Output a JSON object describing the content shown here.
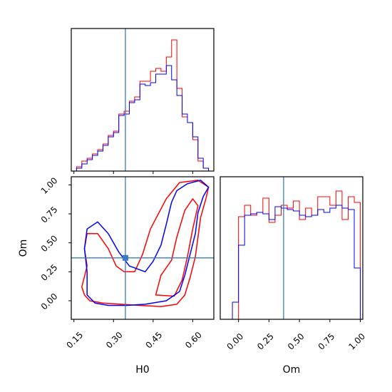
{
  "chart_data": {
    "type": "corner",
    "parameters": [
      "H0",
      "Om"
    ],
    "truth": {
      "H0": 0.345,
      "Om": 0.37
    },
    "truth_color": "#3b7bbf",
    "series": [
      {
        "color": "#ff0000"
      },
      {
        "color": "#0000ff"
      }
    ],
    "panels": {
      "h0_hist": {
        "xlim": [
          0.14,
          0.68
        ],
        "bins": [
          0.14,
          0.16,
          0.18,
          0.2,
          0.22,
          0.24,
          0.26,
          0.28,
          0.3,
          0.32,
          0.34,
          0.36,
          0.38,
          0.4,
          0.42,
          0.44,
          0.46,
          0.48,
          0.5,
          0.52,
          0.54,
          0.56,
          0.58,
          0.6,
          0.62,
          0.64,
          0.66,
          0.68
        ],
        "counts": [
          [
            0,
            0.03,
            0.07,
            0.09,
            0.12,
            0.15,
            0.19,
            0.25,
            0.28,
            0.4,
            0.42,
            0.49,
            0.52,
            0.63,
            0.63,
            0.7,
            0.72,
            0.7,
            0.8,
            0.92,
            0.58,
            0.38,
            0.34,
            0.22,
            0.07,
            0.02,
            0
          ],
          [
            0,
            0.02,
            0.05,
            0.08,
            0.11,
            0.14,
            0.18,
            0.24,
            0.27,
            0.39,
            0.4,
            0.48,
            0.5,
            0.61,
            0.6,
            0.62,
            0.68,
            0.68,
            0.74,
            0.64,
            0.53,
            0.4,
            0.34,
            0.24,
            0.09,
            0.02,
            0
          ]
        ]
      },
      "joint": {
        "xlim": [
          0.14,
          0.68
        ],
        "ylim": [
          -0.16,
          1.07
        ],
        "xticks": [
          0.15,
          0.3,
          0.45,
          0.6
        ],
        "xtick_labels": [
          "0.15",
          "0.30",
          "0.45",
          "0.60"
        ],
        "yticks": [
          0.0,
          0.25,
          0.5,
          0.75,
          1.0
        ],
        "ytick_labels": [
          "0.00",
          "0.25",
          "0.50",
          "0.75",
          "1.00"
        ],
        "xlabel": "H0",
        "ylabel": "Om",
        "contours": [
          {
            "series": 0,
            "points": [
              [
                0.18,
                0.12
              ],
              [
                0.19,
                0.05
              ],
              [
                0.21,
                0.0
              ],
              [
                0.26,
                -0.02
              ],
              [
                0.33,
                -0.03
              ],
              [
                0.4,
                -0.04
              ],
              [
                0.48,
                -0.05
              ],
              [
                0.54,
                -0.03
              ],
              [
                0.57,
                0.05
              ],
              [
                0.59,
                0.2
              ],
              [
                0.61,
                0.38
              ],
              [
                0.62,
                0.55
              ],
              [
                0.63,
                0.72
              ],
              [
                0.65,
                0.88
              ],
              [
                0.66,
                0.98
              ],
              [
                0.62,
                1.04
              ],
              [
                0.55,
                1.02
              ],
              [
                0.5,
                0.88
              ],
              [
                0.44,
                0.62
              ],
              [
                0.41,
                0.4
              ],
              [
                0.38,
                0.25
              ],
              [
                0.34,
                0.25
              ],
              [
                0.31,
                0.3
              ],
              [
                0.28,
                0.45
              ],
              [
                0.24,
                0.58
              ],
              [
                0.2,
                0.58
              ],
              [
                0.19,
                0.45
              ],
              [
                0.2,
                0.3
              ],
              [
                0.18,
                0.12
              ]
            ]
          },
          {
            "series": 0,
            "points": [
              [
                0.46,
                0.05
              ],
              [
                0.53,
                0.04
              ],
              [
                0.56,
                0.18
              ],
              [
                0.58,
                0.38
              ],
              [
                0.6,
                0.62
              ],
              [
                0.62,
                0.82
              ],
              [
                0.6,
                0.88
              ],
              [
                0.57,
                0.78
              ],
              [
                0.54,
                0.55
              ],
              [
                0.52,
                0.35
              ],
              [
                0.48,
                0.22
              ],
              [
                0.46,
                0.05
              ]
            ]
          },
          {
            "series": 1,
            "points": [
              [
                0.2,
                0.05
              ],
              [
                0.23,
                -0.02
              ],
              [
                0.28,
                -0.04
              ],
              [
                0.35,
                -0.04
              ],
              [
                0.42,
                -0.03
              ],
              [
                0.5,
                0.0
              ],
              [
                0.55,
                0.08
              ],
              [
                0.57,
                0.22
              ],
              [
                0.59,
                0.4
              ],
              [
                0.61,
                0.58
              ],
              [
                0.62,
                0.76
              ],
              [
                0.64,
                0.9
              ],
              [
                0.66,
                0.98
              ],
              [
                0.63,
                1.04
              ],
              [
                0.58,
                1.01
              ],
              [
                0.54,
                0.95
              ],
              [
                0.52,
                0.85
              ],
              [
                0.5,
                0.66
              ],
              [
                0.48,
                0.48
              ],
              [
                0.45,
                0.34
              ],
              [
                0.42,
                0.25
              ],
              [
                0.36,
                0.3
              ],
              [
                0.32,
                0.42
              ],
              [
                0.28,
                0.58
              ],
              [
                0.24,
                0.68
              ],
              [
                0.2,
                0.62
              ],
              [
                0.19,
                0.45
              ],
              [
                0.2,
                0.25
              ],
              [
                0.2,
                0.05
              ]
            ]
          }
        ],
        "truth_marker": {
          "H0": 0.345,
          "Om": 0.37
        }
      },
      "om_hist": {
        "xlim": [
          -0.15,
          1.02
        ],
        "xticks": [
          0.0,
          0.25,
          0.5,
          0.75,
          1.0
        ],
        "xtick_labels": [
          "0.00",
          "0.25",
          "0.50",
          "0.75",
          "1.00"
        ],
        "xlabel": "Om",
        "bins": [
          -0.05,
          0.0,
          0.05,
          0.1,
          0.15,
          0.2,
          0.25,
          0.3,
          0.35,
          0.4,
          0.45,
          0.5,
          0.55,
          0.6,
          0.65,
          0.7,
          0.75,
          0.8,
          0.85,
          0.9,
          0.95,
          1.0
        ],
        "counts": [
          [
            0,
            0.72,
            0.8,
            0.73,
            0.75,
            0.85,
            0.68,
            0.73,
            0.8,
            0.78,
            0.83,
            0.7,
            0.78,
            0.73,
            0.86,
            0.86,
            0.8,
            0.9,
            0.7,
            0.86,
            0.82
          ],
          [
            0.12,
            0.52,
            0.73,
            0.74,
            0.75,
            0.74,
            0.7,
            0.79,
            0.78,
            0.77,
            0.76,
            0.73,
            0.72,
            0.73,
            0.77,
            0.75,
            0.78,
            0.8,
            0.78,
            0.77,
            0.36
          ]
        ]
      }
    }
  }
}
